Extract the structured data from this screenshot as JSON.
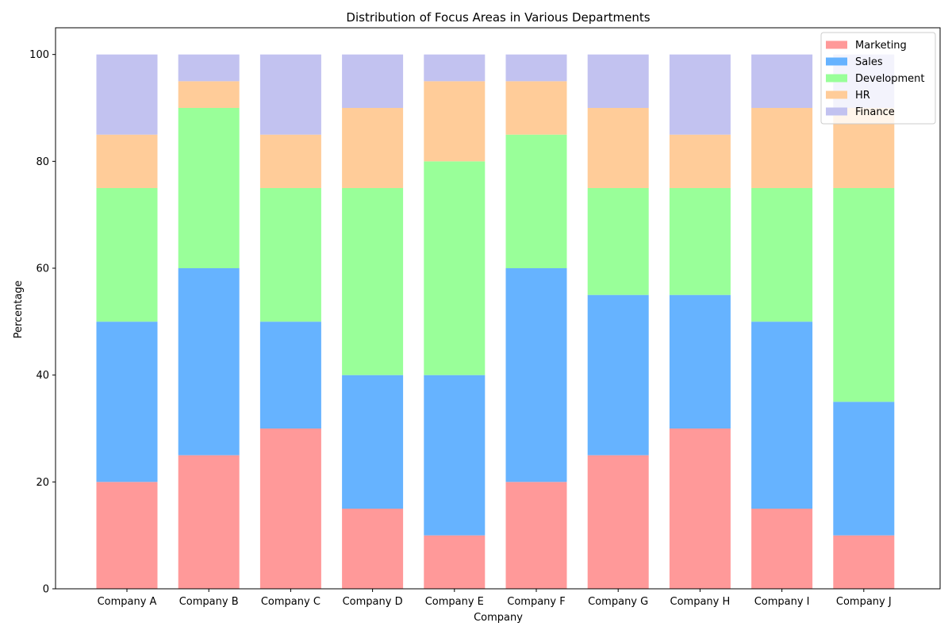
{
  "chart_data": {
    "type": "bar",
    "stacked": true,
    "title": "Distribution of Focus Areas in Various Departments",
    "xlabel": "Company",
    "ylabel": "Percentage",
    "ylim": [
      0,
      105
    ],
    "yticks": [
      0,
      20,
      40,
      60,
      80,
      100
    ],
    "grid": false,
    "legend_position": "top-right",
    "categories": [
      "Company A",
      "Company B",
      "Company C",
      "Company D",
      "Company E",
      "Company F",
      "Company G",
      "Company H",
      "Company I",
      "Company J"
    ],
    "series": [
      {
        "name": "Marketing",
        "color": "#ff9999",
        "values": [
          20,
          25,
          30,
          15,
          10,
          20,
          25,
          30,
          15,
          10
        ]
      },
      {
        "name": "Sales",
        "color": "#66b3ff",
        "values": [
          30,
          35,
          20,
          25,
          30,
          40,
          30,
          25,
          35,
          25
        ]
      },
      {
        "name": "Development",
        "color": "#99ff99",
        "values": [
          25,
          30,
          25,
          35,
          40,
          25,
          20,
          20,
          25,
          40
        ]
      },
      {
        "name": "HR",
        "color": "#ffcc99",
        "values": [
          10,
          5,
          10,
          15,
          15,
          10,
          15,
          10,
          15,
          15
        ]
      },
      {
        "name": "Finance",
        "color": "#c2c2f0",
        "values": [
          15,
          5,
          15,
          10,
          5,
          5,
          10,
          15,
          10,
          10
        ]
      }
    ]
  }
}
